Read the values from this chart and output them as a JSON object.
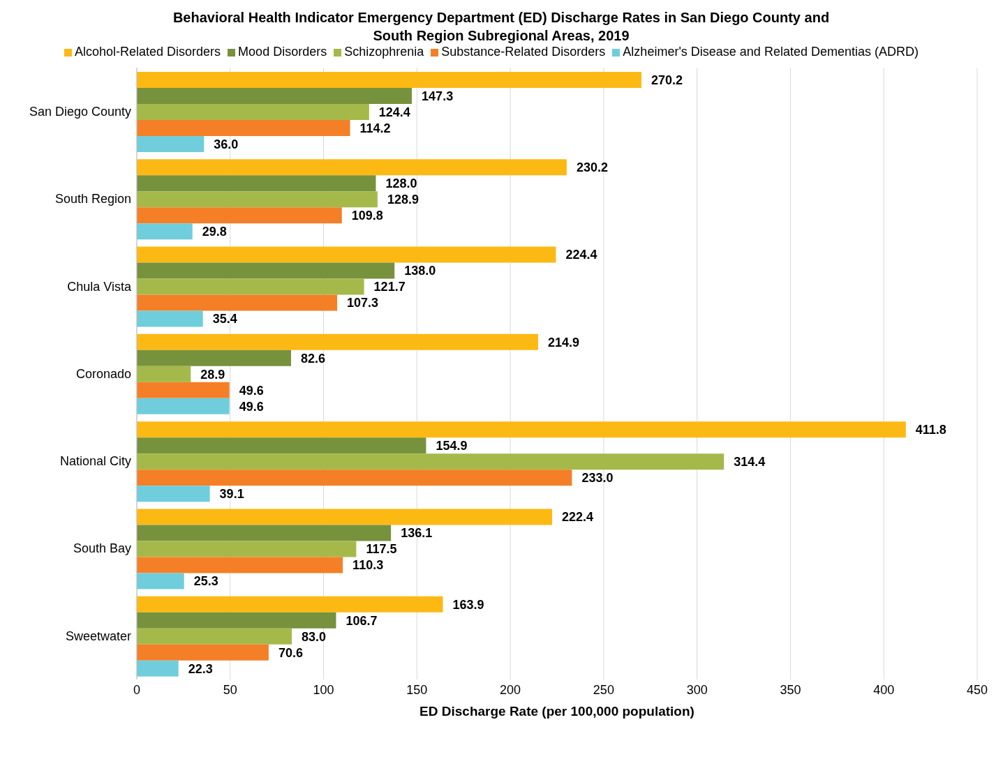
{
  "chart_data": {
    "type": "bar",
    "orientation": "horizontal",
    "title": "Behavioral Health Indicator Emergency Department (ED) Discharge Rates in San Diego County and\nSouth Region Subregional Areas, 2019",
    "xlabel": "ED Discharge Rate (per 100,000 population)",
    "categories": [
      "San Diego County",
      "South Region",
      "Chula Vista",
      "Coronado",
      "National City",
      "South Bay",
      "Sweetwater"
    ],
    "series": [
      {
        "name": "Alcohol-Related Disorders",
        "color": "#fdb913",
        "values": [
          270.2,
          230.2,
          224.4,
          214.9,
          411.8,
          222.4,
          163.9
        ],
        "value_labels": [
          "270.2",
          "230.2",
          "224.4",
          "214.9",
          "411.8",
          "222.4",
          "163.9"
        ]
      },
      {
        "name": "Mood Disorders",
        "color": "#76923c",
        "values": [
          147.3,
          128,
          138,
          82.6,
          154.9,
          136.1,
          106.7
        ],
        "value_labels": [
          "147.3",
          "128.0",
          "138.0",
          "82.6",
          "154.9",
          "136.1",
          "106.7"
        ]
      },
      {
        "name": "Schizophrenia",
        "color": "#a5b94a",
        "values": [
          124.4,
          128.9,
          121.7,
          28.9,
          314.4,
          117.5,
          83
        ],
        "value_labels": [
          "124.4",
          "128.9",
          "121.7",
          "28.9",
          "314.4",
          "117.5",
          "83.0"
        ]
      },
      {
        "name": "Substance-Related Disorders",
        "color": "#f47f26",
        "values": [
          114.2,
          109.8,
          107.3,
          49.6,
          233,
          110.3,
          70.6
        ],
        "value_labels": [
          "114.2",
          "109.8",
          "107.3",
          "49.6",
          "233.0",
          "110.3",
          "70.6"
        ]
      },
      {
        "name": "Alzheimer's Disease and Related Dementias (ADRD)",
        "color": "#6fcddc",
        "values": [
          36,
          29.8,
          35.4,
          49.6,
          39.1,
          25.3,
          22.3
        ],
        "value_labels": [
          "36.0",
          "29.8",
          "35.4",
          "49.6",
          "39.1",
          "25.3",
          "22.3"
        ]
      }
    ],
    "xlim": [
      0,
      450
    ],
    "xticks": [
      0,
      50,
      100,
      150,
      200,
      250,
      300,
      350,
      400,
      450
    ],
    "grid": "x",
    "legend": "top"
  }
}
